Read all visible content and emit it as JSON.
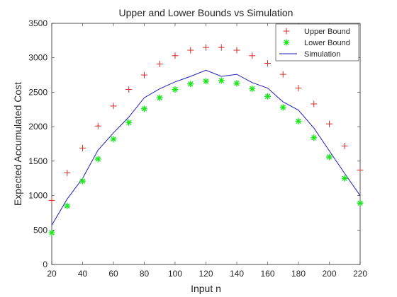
{
  "chart_data": {
    "type": "scatter",
    "title": "Upper and Lower Bounds vs Simulation",
    "xlabel": "Input n",
    "ylabel": "Expected Accumulated Cost",
    "xlim": [
      20,
      220
    ],
    "ylim": [
      0,
      3500
    ],
    "xticks": [
      20,
      40,
      60,
      80,
      100,
      120,
      140,
      160,
      180,
      200,
      220
    ],
    "yticks": [
      0,
      500,
      1000,
      1500,
      2000,
      2500,
      3000,
      3500
    ],
    "grid": false,
    "legend_position": "top-right",
    "x": [
      20,
      30,
      40,
      50,
      60,
      70,
      80,
      90,
      100,
      110,
      120,
      130,
      140,
      150,
      160,
      170,
      180,
      190,
      200,
      210,
      220
    ],
    "series": [
      {
        "name": "Upper Bound",
        "marker": "+",
        "color": "#d42a2a",
        "values": [
          930,
          1330,
          1690,
          2010,
          2300,
          2540,
          2750,
          2910,
          3030,
          3110,
          3150,
          3150,
          3110,
          3030,
          2920,
          2760,
          2560,
          2330,
          2040,
          1720,
          1370
        ]
      },
      {
        "name": "Lower Bound",
        "marker": "*",
        "color": "#1ee61e",
        "values": [
          460,
          850,
          1210,
          1530,
          1820,
          2060,
          2260,
          2420,
          2540,
          2620,
          2660,
          2670,
          2630,
          2550,
          2440,
          2280,
          2080,
          1840,
          1560,
          1250,
          890
        ]
      },
      {
        "name": "Simulation",
        "marker": "line",
        "color": "#1f1fb4",
        "values": [
          570,
          950,
          1250,
          1660,
          1910,
          2140,
          2420,
          2550,
          2650,
          2730,
          2820,
          2730,
          2760,
          2640,
          2560,
          2360,
          2240,
          1980,
          1650,
          1320,
          1000
        ]
      }
    ]
  }
}
